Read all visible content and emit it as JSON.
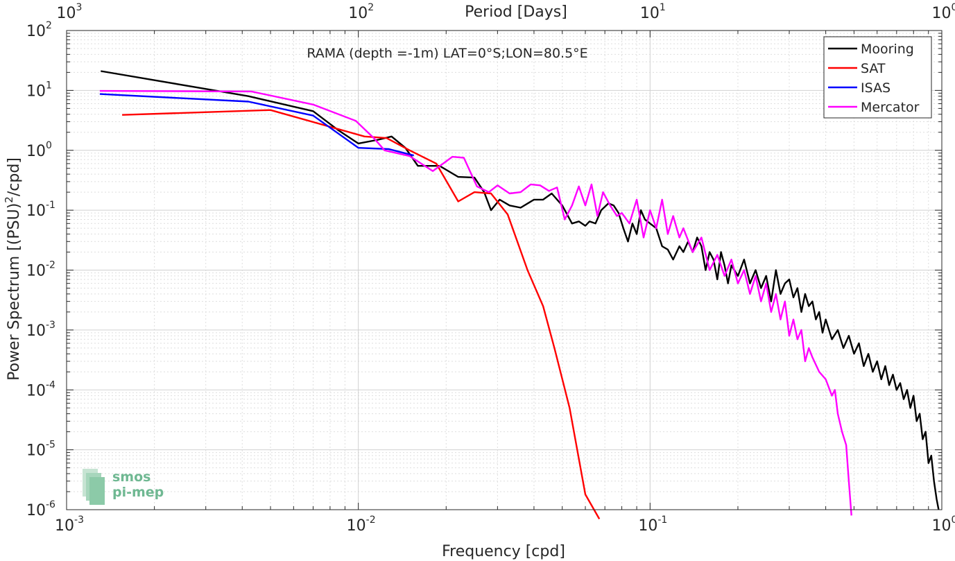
{
  "chart_data": {
    "type": "line",
    "title": "RAMA (depth =-1m) LAT=0°S;LON=80.5°E",
    "xlabel": "Frequency [cpd]",
    "ylabel": "Power Spectrum [(PSU)²/cpd]",
    "ylabel_base": "Power Spectrum [(PSU)",
    "ylabel_sup": "2",
    "ylabel_tail": "/cpd]",
    "top_xlabel": "Period [Days]",
    "xscale": "log",
    "yscale": "log",
    "xlim": [
      0.001,
      1
    ],
    "ylim": [
      1e-06,
      100
    ],
    "grid": true,
    "legend_position": "top-right",
    "x_ticks": [
      {
        "base": "10",
        "exp": "-3",
        "value": 0.001
      },
      {
        "base": "10",
        "exp": "-2",
        "value": 0.01
      },
      {
        "base": "10",
        "exp": "-1",
        "value": 0.1
      },
      {
        "base": "10",
        "exp": "0",
        "value": 1
      }
    ],
    "top_ticks": [
      {
        "base": "10",
        "exp": "3",
        "value": 0.001
      },
      {
        "base": "10",
        "exp": "2",
        "value": 0.01
      },
      {
        "base": "10",
        "exp": "1",
        "value": 0.1
      },
      {
        "base": "10",
        "exp": "0",
        "value": 1
      }
    ],
    "y_ticks": [
      {
        "base": "10",
        "exp": "-6",
        "value": 1e-06
      },
      {
        "base": "10",
        "exp": "-5",
        "value": 1e-05
      },
      {
        "base": "10",
        "exp": "-4",
        "value": 0.0001
      },
      {
        "base": "10",
        "exp": "-3",
        "value": 0.001
      },
      {
        "base": "10",
        "exp": "-2",
        "value": 0.01
      },
      {
        "base": "10",
        "exp": "-1",
        "value": 0.1
      },
      {
        "base": "10",
        "exp": "0",
        "value": 1
      },
      {
        "base": "10",
        "exp": "1",
        "value": 10
      },
      {
        "base": "10",
        "exp": "2",
        "value": 100
      }
    ],
    "series": [
      {
        "name": "Mooring",
        "color": "#000000",
        "points": [
          [
            0.00131,
            21
          ],
          [
            0.0042,
            8
          ],
          [
            0.007,
            4.5
          ],
          [
            0.0085,
            2.2
          ],
          [
            0.01,
            1.3
          ],
          [
            0.0117,
            1.5
          ],
          [
            0.013,
            1.7
          ],
          [
            0.0145,
            1.1
          ],
          [
            0.016,
            0.55
          ],
          [
            0.019,
            0.55
          ],
          [
            0.022,
            0.36
          ],
          [
            0.025,
            0.35
          ],
          [
            0.027,
            0.2
          ],
          [
            0.0285,
            0.1
          ],
          [
            0.0305,
            0.15
          ],
          [
            0.033,
            0.12
          ],
          [
            0.036,
            0.11
          ],
          [
            0.04,
            0.15
          ],
          [
            0.043,
            0.15
          ],
          [
            0.046,
            0.19
          ],
          [
            0.05,
            0.12
          ],
          [
            0.054,
            0.06
          ],
          [
            0.057,
            0.065
          ],
          [
            0.06,
            0.055
          ],
          [
            0.062,
            0.065
          ],
          [
            0.065,
            0.06
          ],
          [
            0.068,
            0.1
          ],
          [
            0.072,
            0.13
          ],
          [
            0.075,
            0.12
          ],
          [
            0.078,
            0.09
          ],
          [
            0.081,
            0.05
          ],
          [
            0.084,
            0.03
          ],
          [
            0.087,
            0.06
          ],
          [
            0.09,
            0.04
          ],
          [
            0.093,
            0.1
          ],
          [
            0.096,
            0.07
          ],
          [
            0.1,
            0.06
          ],
          [
            0.105,
            0.05
          ],
          [
            0.11,
            0.025
          ],
          [
            0.115,
            0.022
          ],
          [
            0.12,
            0.015
          ],
          [
            0.126,
            0.025
          ],
          [
            0.13,
            0.02
          ],
          [
            0.135,
            0.03
          ],
          [
            0.14,
            0.02
          ],
          [
            0.145,
            0.035
          ],
          [
            0.15,
            0.025
          ],
          [
            0.155,
            0.01
          ],
          [
            0.16,
            0.02
          ],
          [
            0.165,
            0.015
          ],
          [
            0.17,
            0.007
          ],
          [
            0.175,
            0.02
          ],
          [
            0.18,
            0.012
          ],
          [
            0.185,
            0.006
          ],
          [
            0.19,
            0.012
          ],
          [
            0.2,
            0.008
          ],
          [
            0.21,
            0.015
          ],
          [
            0.22,
            0.006
          ],
          [
            0.23,
            0.01
          ],
          [
            0.24,
            0.005
          ],
          [
            0.25,
            0.008
          ],
          [
            0.26,
            0.003
          ],
          [
            0.27,
            0.01
          ],
          [
            0.28,
            0.004
          ],
          [
            0.29,
            0.006
          ],
          [
            0.3,
            0.007
          ],
          [
            0.31,
            0.0035
          ],
          [
            0.32,
            0.005
          ],
          [
            0.33,
            0.002
          ],
          [
            0.34,
            0.004
          ],
          [
            0.35,
            0.0025
          ],
          [
            0.36,
            0.003
          ],
          [
            0.37,
            0.0015
          ],
          [
            0.38,
            0.002
          ],
          [
            0.39,
            0.0009
          ],
          [
            0.4,
            0.0015
          ],
          [
            0.42,
            0.0007
          ],
          [
            0.44,
            0.001
          ],
          [
            0.46,
            0.0005
          ],
          [
            0.48,
            0.0008
          ],
          [
            0.5,
            0.0004
          ],
          [
            0.52,
            0.0006
          ],
          [
            0.54,
            0.00025
          ],
          [
            0.56,
            0.0004
          ],
          [
            0.58,
            0.0002
          ],
          [
            0.6,
            0.0003
          ],
          [
            0.62,
            0.00015
          ],
          [
            0.64,
            0.00025
          ],
          [
            0.66,
            0.00012
          ],
          [
            0.68,
            0.00018
          ],
          [
            0.7,
            0.0001
          ],
          [
            0.72,
            0.00013
          ],
          [
            0.74,
            7e-05
          ],
          [
            0.76,
            0.0001
          ],
          [
            0.78,
            5e-05
          ],
          [
            0.8,
            8e-05
          ],
          [
            0.82,
            3e-05
          ],
          [
            0.84,
            4e-05
          ],
          [
            0.86,
            1.5e-05
          ],
          [
            0.88,
            2e-05
          ],
          [
            0.9,
            6e-06
          ],
          [
            0.92,
            8e-06
          ],
          [
            0.94,
            3e-06
          ],
          [
            0.96,
            1.5e-06
          ],
          [
            0.975,
            1e-06
          ]
        ]
      },
      {
        "name": "SAT",
        "color": "#ff0000",
        "points": [
          [
            0.00155,
            3.9
          ],
          [
            0.005,
            4.7
          ],
          [
            0.0105,
            1.7
          ],
          [
            0.0125,
            1.6
          ],
          [
            0.015,
            1.0
          ],
          [
            0.0185,
            0.6
          ],
          [
            0.022,
            0.14
          ],
          [
            0.025,
            0.2
          ],
          [
            0.0285,
            0.19
          ],
          [
            0.0325,
            0.085
          ],
          [
            0.038,
            0.01
          ],
          [
            0.043,
            0.0025
          ],
          [
            0.047,
            0.0005
          ],
          [
            0.053,
            5e-05
          ],
          [
            0.06,
            1.8e-06
          ],
          [
            0.067,
            7e-07
          ]
        ]
      },
      {
        "name": "ISAS",
        "color": "#0000ff",
        "points": [
          [
            0.0013,
            8.7
          ],
          [
            0.0042,
            6.5
          ],
          [
            0.007,
            3.8
          ],
          [
            0.01,
            1.1
          ],
          [
            0.0127,
            1.05
          ],
          [
            0.0155,
            0.82
          ]
        ]
      },
      {
        "name": "Mercator",
        "color": "#ff00ff",
        "points": [
          [
            0.0013,
            9.8
          ],
          [
            0.0043,
            9.6
          ],
          [
            0.007,
            5.8
          ],
          [
            0.0098,
            3.1
          ],
          [
            0.0113,
            1.6
          ],
          [
            0.0123,
            1.0
          ],
          [
            0.015,
            0.8
          ],
          [
            0.018,
            0.45
          ],
          [
            0.021,
            0.78
          ],
          [
            0.023,
            0.75
          ],
          [
            0.0255,
            0.25
          ],
          [
            0.028,
            0.2
          ],
          [
            0.03,
            0.26
          ],
          [
            0.033,
            0.19
          ],
          [
            0.036,
            0.2
          ],
          [
            0.039,
            0.27
          ],
          [
            0.042,
            0.26
          ],
          [
            0.045,
            0.21
          ],
          [
            0.048,
            0.24
          ],
          [
            0.051,
            0.07
          ],
          [
            0.054,
            0.12
          ],
          [
            0.057,
            0.25
          ],
          [
            0.06,
            0.12
          ],
          [
            0.063,
            0.27
          ],
          [
            0.066,
            0.08
          ],
          [
            0.069,
            0.2
          ],
          [
            0.073,
            0.12
          ],
          [
            0.077,
            0.08
          ],
          [
            0.08,
            0.09
          ],
          [
            0.085,
            0.06
          ],
          [
            0.09,
            0.15
          ],
          [
            0.095,
            0.035
          ],
          [
            0.1,
            0.1
          ],
          [
            0.105,
            0.05
          ],
          [
            0.11,
            0.15
          ],
          [
            0.115,
            0.04
          ],
          [
            0.12,
            0.08
          ],
          [
            0.126,
            0.035
          ],
          [
            0.13,
            0.05
          ],
          [
            0.14,
            0.02
          ],
          [
            0.15,
            0.035
          ],
          [
            0.16,
            0.01
          ],
          [
            0.17,
            0.018
          ],
          [
            0.18,
            0.008
          ],
          [
            0.19,
            0.015
          ],
          [
            0.2,
            0.006
          ],
          [
            0.21,
            0.01
          ],
          [
            0.22,
            0.004
          ],
          [
            0.23,
            0.008
          ],
          [
            0.24,
            0.003
          ],
          [
            0.25,
            0.006
          ],
          [
            0.26,
            0.002
          ],
          [
            0.27,
            0.004
          ],
          [
            0.28,
            0.0015
          ],
          [
            0.29,
            0.003
          ],
          [
            0.3,
            0.0008
          ],
          [
            0.31,
            0.0015
          ],
          [
            0.32,
            0.0007
          ],
          [
            0.33,
            0.001
          ],
          [
            0.34,
            0.0003
          ],
          [
            0.35,
            0.0005
          ],
          [
            0.36,
            0.00035
          ],
          [
            0.38,
            0.0002
          ],
          [
            0.4,
            0.00015
          ],
          [
            0.42,
            8e-05
          ],
          [
            0.43,
            0.0001
          ],
          [
            0.44,
            4e-05
          ],
          [
            0.455,
            2e-05
          ],
          [
            0.47,
            1.2e-05
          ],
          [
            0.48,
            3e-06
          ],
          [
            0.49,
            8e-07
          ]
        ]
      }
    ]
  },
  "logo": {
    "line1": "smos",
    "line2": "pi-mep",
    "color": "#6fb892"
  }
}
